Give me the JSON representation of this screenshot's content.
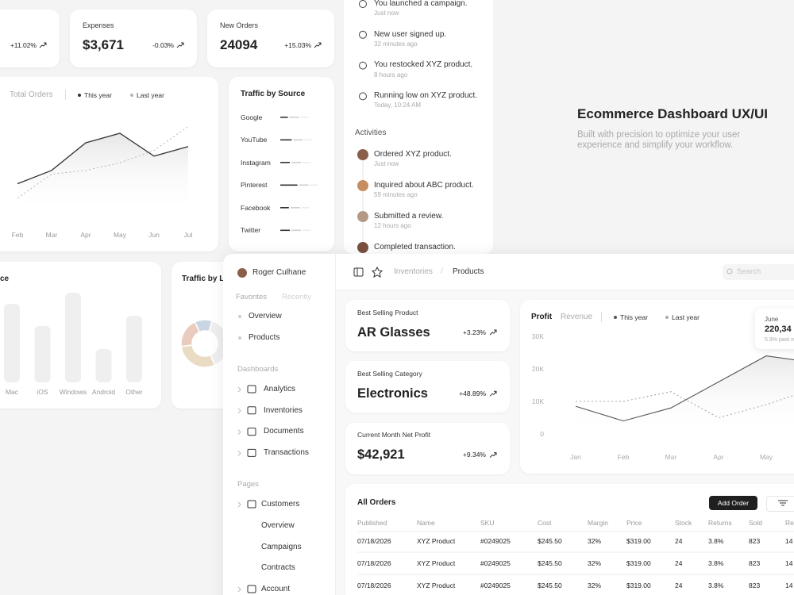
{
  "stat_cards": [
    {
      "change": "+11.02%"
    },
    {
      "label": "Expenses",
      "value": "$3,671",
      "change": "-0.03%"
    },
    {
      "label": "New Orders",
      "value": "24094",
      "change": "+15.03%"
    }
  ],
  "orders_chart": {
    "tabs": [
      "Total Orders"
    ],
    "categories": [
      "Feb",
      "Mar",
      "Apr",
      "May",
      "Jun",
      "Jul"
    ],
    "series": [
      {
        "name": "This year",
        "color": "#333333",
        "values": [
          32,
          46,
          75,
          85,
          61,
          71
        ]
      },
      {
        "name": "Last year",
        "color": "#b5b5b5",
        "values": [
          17,
          42,
          46,
          54,
          67,
          92
        ]
      }
    ],
    "ylim": [
      0,
      100
    ]
  },
  "traffic_by_source": {
    "title": "Traffic by Source",
    "sources": [
      {
        "name": "Google",
        "value": 8
      },
      {
        "name": "YouTube",
        "value": 12
      },
      {
        "name": "Instagram",
        "value": 10
      },
      {
        "name": "Pinterest",
        "value": 18
      },
      {
        "name": "Facebook",
        "value": 9
      },
      {
        "name": "Twitter",
        "value": 10
      }
    ],
    "xlim": [
      0,
      50
    ],
    "color": "#333333"
  },
  "devices_chart": {
    "title": "ce",
    "categories": [
      "Mac",
      "iOS",
      "Windows",
      "Android",
      "Other"
    ],
    "values": [
      99,
      71,
      113,
      42,
      84
    ],
    "ylim": [
      0,
      130
    ],
    "color": "#efefef"
  },
  "traffic_by_location": {
    "title": "Traffic by L",
    "values": [
      12,
      38,
      30,
      20
    ],
    "colors": [
      "#c9d5e2",
      "#eeeeee",
      "#eadcc3",
      "#e9ccbd"
    ]
  },
  "notifications": [
    {
      "text": "You launched a campaign.",
      "time": "Just now"
    },
    {
      "text": "New user signed up.",
      "time": "32 minutes ago"
    },
    {
      "text": "You restocked XYZ product.",
      "time": "8 hours ago"
    },
    {
      "text": "Running low on XYZ product.",
      "time": "Today, 10:24 AM"
    }
  ],
  "activities": {
    "title": "Activities",
    "items": [
      {
        "text": "Ordered XYZ product.",
        "time": "Just now"
      },
      {
        "text": "Inquired about ABC product.",
        "time": "59 minutes ago"
      },
      {
        "text": "Submitted a review.",
        "time": "12 hours ago"
      },
      {
        "text": "Completed transaction."
      }
    ]
  },
  "hero": {
    "title": "Ecommerce Dashboard UX/UI",
    "subtitle": "Built with precision to optimize your user experience and simplify your workflow."
  },
  "sidebar": {
    "user": "Roger Culhane",
    "tabs": [
      "Favorites",
      "Recently"
    ],
    "favorites": [
      "Overview",
      "Products"
    ],
    "dashboards_title": "Dashboards",
    "dashboards": [
      "Analytics",
      "Inventories",
      "Documents",
      "Transactions"
    ],
    "pages_title": "Pages",
    "customers": "Customers",
    "customer_pages": [
      "Overview",
      "Campaigns",
      "Contracts"
    ],
    "account": "Account"
  },
  "breadcrumb": {
    "items": [
      "Inventories",
      "Products"
    ],
    "separator": "/"
  },
  "search": "Search",
  "kpi_cards": [
    {
      "label": "Best Selling Product",
      "value": "AR Glasses",
      "change": "+3.23%"
    },
    {
      "label": "Best Selling Category",
      "value": "Electronics",
      "change": "+48.89%"
    },
    {
      "label": "Current Month Net Profit",
      "value": "$42,921",
      "change": "+9.34%"
    }
  ],
  "profit_chart": {
    "tabs": [
      "Profit",
      "Revenue"
    ],
    "categories": [
      "Jan",
      "Feb",
      "Mar",
      "Apr",
      "May",
      null
    ],
    "series": [
      {
        "name": "This year",
        "color": "#555555",
        "values": [
          8500,
          4000,
          8000,
          16000,
          24000,
          22000
        ]
      },
      {
        "name": "Last year",
        "color": "#aaaaaa",
        "values": [
          10000,
          10000,
          13000,
          5000,
          9000,
          14000
        ]
      }
    ],
    "ylim": [
      0,
      30000
    ],
    "yticks": [
      {
        "value": 30000,
        "label": "30K"
      },
      {
        "value": 20000,
        "label": "20K"
      },
      {
        "value": 10000,
        "label": "10K"
      },
      0
    ],
    "tooltip": {
      "title": "June",
      "value": "220,34",
      "note": "5.9% past m"
    }
  },
  "orders_table": {
    "title": "All Orders",
    "button": "Add Order",
    "columns": [
      "Published",
      "Name",
      "SKU",
      "Cost",
      "Margin",
      "Price",
      "Stock",
      "Returns",
      "Sold",
      "Re"
    ],
    "rows": [
      [
        "07/18/2026",
        "XYZ Product",
        "#0249025",
        "$245.50",
        "32%",
        "$319.00",
        "24",
        "3.8%",
        "823",
        "14"
      ],
      [
        "07/18/2026",
        "XYZ Product",
        "#0249025",
        "$245.50",
        "32%",
        "$319.00",
        "24",
        "3.8%",
        "823",
        "14"
      ],
      [
        "07/18/2026",
        "XYZ Product",
        "#0249025",
        "$245.50",
        "32%",
        "$319.00",
        "24",
        "3.8%",
        "823",
        "14"
      ]
    ]
  }
}
